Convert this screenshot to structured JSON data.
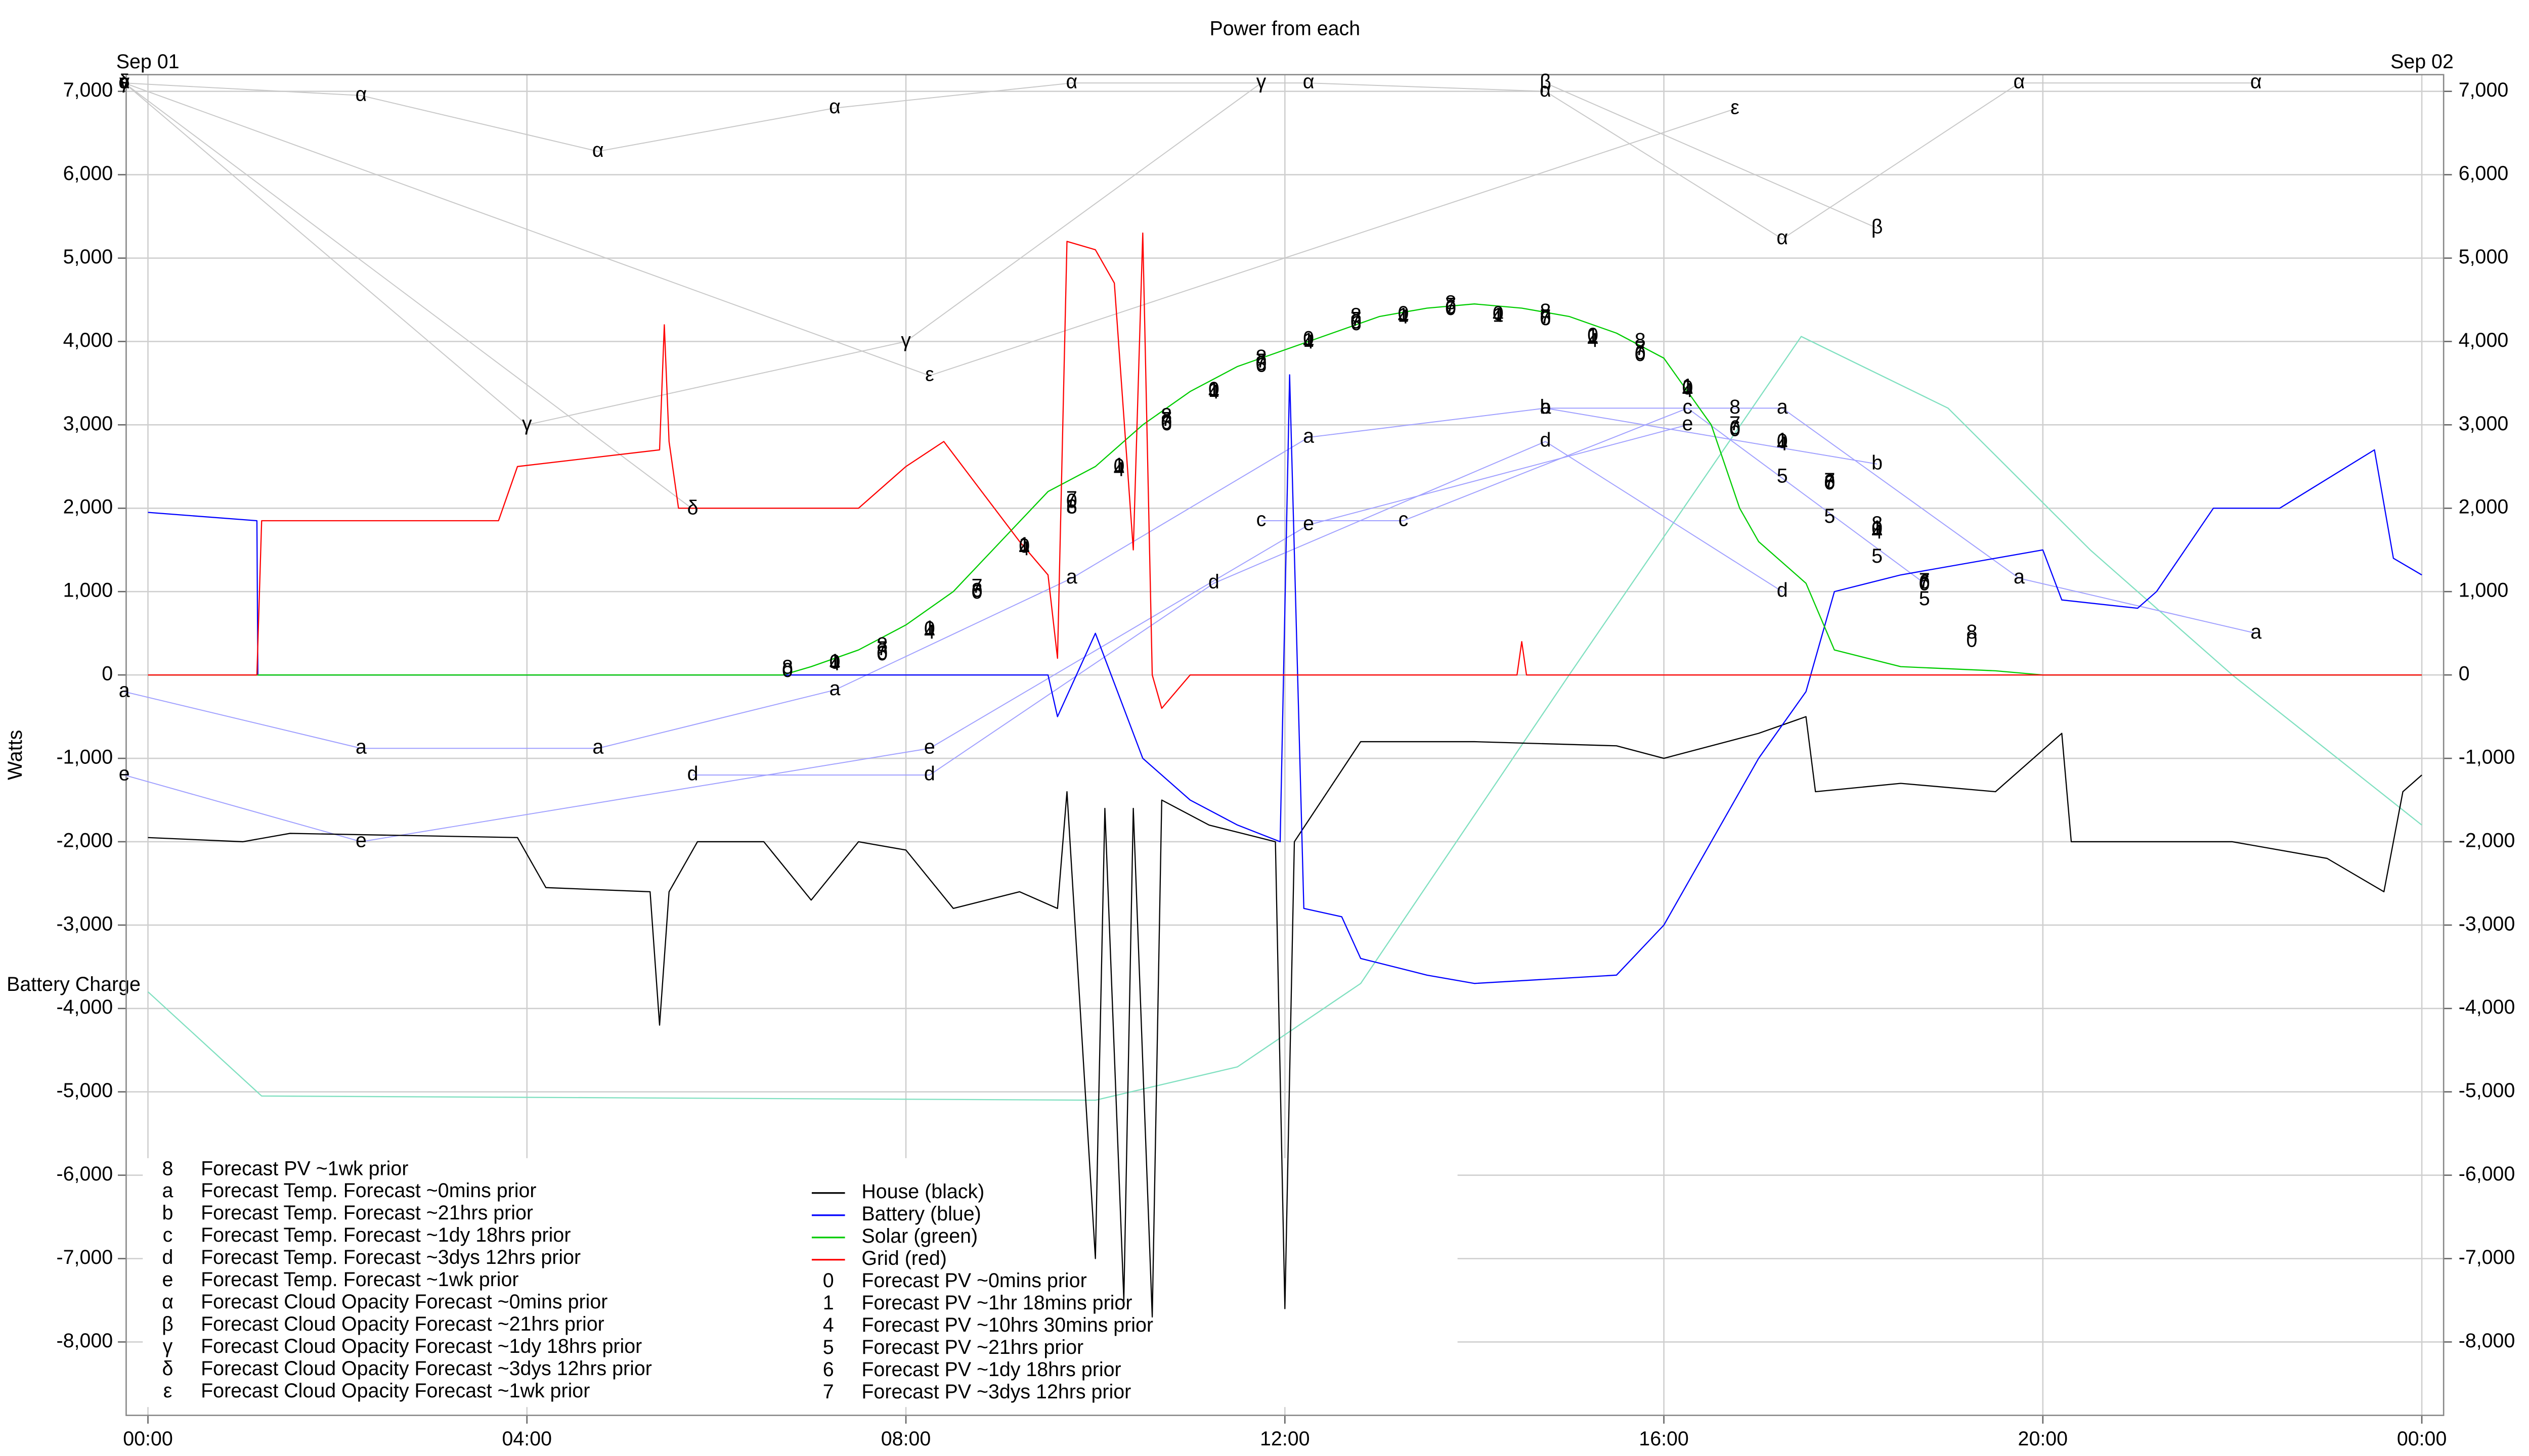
{
  "chart_data": {
    "type": "line",
    "title": "Power from each",
    "ylabel": "Watts",
    "date_start": "Sep 01",
    "date_end": "Sep 02",
    "grid": true,
    "xlim": [
      -0.23,
      24.23
    ],
    "ylim": [
      -8880,
      7200
    ],
    "xticks": [
      {
        "value": 0,
        "label": "00:00"
      },
      {
        "value": 4,
        "label": "04:00"
      },
      {
        "value": 8,
        "label": "08:00"
      },
      {
        "value": 12,
        "label": "12:00"
      },
      {
        "value": 16,
        "label": "16:00"
      },
      {
        "value": 20,
        "label": "20:00"
      },
      {
        "value": 24,
        "label": "00:00"
      }
    ],
    "yticks": [
      {
        "value": 7000,
        "label": "7,000"
      },
      {
        "value": 6000,
        "label": "6,000"
      },
      {
        "value": 5000,
        "label": "5,000"
      },
      {
        "value": 4000,
        "label": "4,000"
      },
      {
        "value": 3000,
        "label": "3,000"
      },
      {
        "value": 2000,
        "label": "2,000"
      },
      {
        "value": 1000,
        "label": "1,000"
      },
      0,
      {
        "value": -1000,
        "label": "-1,000"
      },
      {
        "value": -2000,
        "label": "-2,000"
      },
      {
        "value": -3000,
        "label": "-3,000"
      },
      {
        "value": -4000,
        "label": "-4,000"
      },
      {
        "value": -5000,
        "label": "-5,000"
      },
      {
        "value": -6000,
        "label": "-6,000"
      },
      {
        "value": -7000,
        "label": "-7,000"
      },
      {
        "value": -8000,
        "label": "-8,000"
      }
    ],
    "battery_charge": {
      "label": "Battery Charge",
      "color": "#80e0c0",
      "x": [
        0,
        1.2,
        10,
        11.5,
        12.8,
        15,
        17.45,
        19,
        20.5,
        22,
        24
      ],
      "values": [
        -3800,
        -5050,
        -5100,
        -4700,
        -3700,
        0,
        4060,
        3200,
        1500,
        0,
        -1800
      ]
    },
    "series": [
      {
        "name": "Forecast PV ~1wk prior",
        "symbol": "8",
        "mark": "symbol",
        "color": "#000000",
        "x": [
          6.75,
          7.75,
          8.75,
          9.75,
          10.75,
          11.75,
          12.75,
          13.75,
          14.75,
          15.75,
          16.75,
          17.75,
          18.25,
          19.25
        ],
        "values": [
          80,
          350,
          1000,
          2000,
          3100,
          3800,
          4300,
          4450,
          4350,
          4000,
          3200,
          2300,
          1800,
          500
        ]
      },
      {
        "name": "Forecast Temp. Forecast ~0mins prior",
        "symbol": "a",
        "mark": "line+symbol",
        "color": "#a0a0ff",
        "x": [
          -0.25,
          2.25,
          4.75,
          7.25,
          9.75,
          12.25,
          14.75,
          17.25,
          19.75,
          22.25
        ],
        "values": [
          -200,
          -880,
          -880,
          -180,
          1160,
          2850,
          3200,
          3200,
          1160,
          500
        ]
      },
      {
        "name": "Forecast Temp. Forecast ~21hrs prior",
        "symbol": "b",
        "mark": "line+symbol",
        "color": "#a0a0ff",
        "x": [
          14.75,
          18.25
        ],
        "values": [
          3200,
          2530
        ]
      },
      {
        "name": "Forecast Temp. Forecast ~1dy 18hrs prior",
        "symbol": "c",
        "mark": "line+symbol",
        "color": "#a0a0ff",
        "x": [
          11.75,
          13.25,
          16.25,
          18.75
        ],
        "values": [
          1850,
          1850,
          3200,
          1100
        ]
      },
      {
        "name": "Forecast Temp. Forecast ~3dys 12hrs prior",
        "symbol": "d",
        "mark": "line+symbol",
        "color": "#a0a0ff",
        "x": [
          5.75,
          8.25,
          11.25,
          14.75,
          17.25
        ],
        "values": [
          -1200,
          -1200,
          1100,
          2800,
          1000
        ]
      },
      {
        "name": "Forecast Temp. Forecast ~1wk prior",
        "symbol": "e",
        "mark": "line+symbol",
        "color": "#a0a0ff",
        "x": [
          -0.25,
          2.25,
          8.25,
          12.25,
          16.25
        ],
        "values": [
          -1200,
          -2000,
          -880,
          1800,
          3000
        ]
      },
      {
        "name": "Forecast Cloud Opacity Forecast ~0mins prior",
        "symbol": "α",
        "mark": "line+symbol",
        "color": "#c8c8c8",
        "x": [
          -0.25,
          2.25,
          4.75,
          7.25,
          9.75,
          12.25,
          14.75,
          17.25,
          19.75,
          22.25
        ],
        "values": [
          7100,
          6950,
          6280,
          6800,
          7100,
          7100,
          7000,
          5230,
          7100,
          7100
        ]
      },
      {
        "name": "Forecast Cloud Opacity Forecast ~21hrs prior",
        "symbol": "β",
        "mark": "line+symbol",
        "color": "#c8c8c8",
        "x": [
          14.75,
          18.25
        ],
        "values": [
          7100,
          5360
        ]
      },
      {
        "name": "Forecast Cloud Opacity Forecast ~1dy 18hrs prior",
        "symbol": "γ",
        "mark": "line+symbol",
        "color": "#c8c8c8",
        "x": [
          -0.25,
          4,
          8,
          11.75
        ],
        "values": [
          7100,
          3000,
          4000,
          7100
        ]
      },
      {
        "name": "Forecast Cloud Opacity Forecast ~3dys 12hrs prior",
        "symbol": "δ",
        "mark": "line+symbol",
        "color": "#c8c8c8",
        "x": [
          -0.25,
          5.75
        ],
        "values": [
          7100,
          1990
        ]
      },
      {
        "name": "Forecast Cloud Opacity Forecast ~1wk prior",
        "symbol": "ε",
        "mark": "line+symbol",
        "color": "#c8c8c8",
        "x": [
          -0.25,
          8.25,
          16.75
        ],
        "values": [
          7100,
          3590,
          6790
        ]
      },
      {
        "name": "House (black)",
        "mark": "line",
        "color": "#000000",
        "x": [
          0,
          1,
          1.5,
          3.9,
          4.2,
          5.3,
          5.4,
          5.5,
          5.8,
          6.5,
          7,
          7.5,
          8,
          8.5,
          9.2,
          9.6,
          9.7,
          10,
          10.1,
          10.3,
          10.4,
          10.6,
          10.7,
          11.2,
          11.9,
          12,
          12.1,
          12.8,
          14,
          15.5,
          16,
          17,
          17.5,
          17.6,
          18.5,
          19.5,
          20.2,
          20.3,
          21,
          22,
          23,
          23.6,
          23.8,
          24
        ],
        "values": [
          -1950,
          -2000,
          -1900,
          -1950,
          -2550,
          -2600,
          -4200,
          -2600,
          -2000,
          -2000,
          -2700,
          -2000,
          -2100,
          -2800,
          -2600,
          -2800,
          -1400,
          -7000,
          -1600,
          -7500,
          -1600,
          -7700,
          -1500,
          -1800,
          -2000,
          -7600,
          -2000,
          -800,
          -800,
          -850,
          -1000,
          -700,
          -500,
          -1400,
          -1300,
          -1400,
          -700,
          -2000,
          -2000,
          -2000,
          -2200,
          -2600,
          -1400,
          -1200
        ]
      },
      {
        "name": "Battery (blue)",
        "mark": "line",
        "color": "#0000ff",
        "x": [
          0,
          1.15,
          1.16,
          9.5,
          9.6,
          10,
          10.5,
          11,
          11.5,
          11.95,
          12.05,
          12.2,
          12.6,
          12.8,
          13.5,
          14,
          15.5,
          16,
          16.5,
          17,
          17.5,
          17.8,
          18.5,
          19.5,
          20,
          20.2,
          21,
          21.2,
          21.8,
          22.5,
          23.5,
          23.7,
          24
        ],
        "values": [
          1950,
          1850,
          0,
          0,
          -500,
          500,
          -1000,
          -1500,
          -1800,
          -2000,
          3600,
          -2800,
          -2900,
          -3400,
          -3600,
          -3700,
          -3600,
          -3000,
          -2000,
          -1000,
          -200,
          1000,
          1200,
          1400,
          1500,
          900,
          800,
          1000,
          2000,
          2000,
          2700,
          1400,
          1200
        ]
      },
      {
        "name": "Solar (green)",
        "mark": "line",
        "color": "#00cc00",
        "x": [
          0,
          6.7,
          7,
          7.5,
          8,
          8.5,
          9,
          9.5,
          10,
          10.5,
          11,
          11.5,
          12,
          12.5,
          13,
          13.5,
          14,
          14.5,
          15,
          15.5,
          16,
          16.5,
          16.8,
          17,
          17.5,
          17.8,
          18.5,
          19.5,
          20,
          24
        ],
        "values": [
          0,
          0,
          100,
          300,
          600,
          1000,
          1600,
          2200,
          2500,
          3000,
          3400,
          3700,
          3900,
          4100,
          4300,
          4400,
          4450,
          4400,
          4300,
          4100,
          3800,
          3000,
          2000,
          1600,
          1100,
          300,
          100,
          50,
          0,
          0
        ]
      },
      {
        "name": "Grid (red)",
        "mark": "line",
        "color": "#ff0000",
        "x": [
          0,
          1.15,
          1.2,
          3.7,
          3.9,
          5.4,
          5.45,
          5.5,
          5.6,
          7.5,
          8,
          8.4,
          8.8,
          9.2,
          9.5,
          9.6,
          9.7,
          10,
          10.2,
          10.4,
          10.5,
          10.6,
          10.7,
          11,
          14.45,
          14.5,
          14.55,
          24
        ],
        "values": [
          0,
          0,
          1850,
          1850,
          2500,
          2700,
          4200,
          2800,
          2000,
          2000,
          2500,
          2800,
          2200,
          1600,
          1200,
          200,
          5200,
          5100,
          4700,
          1500,
          5300,
          0,
          -400,
          0,
          0,
          400,
          0,
          0
        ]
      },
      {
        "name": "Forecast PV ~0mins prior",
        "symbol": "0",
        "mark": "symbol",
        "color": "#000000",
        "x": [
          6.75,
          7.25,
          7.75,
          8.25,
          8.75,
          9.25,
          9.75,
          10.25,
          10.75,
          11.25,
          11.75,
          12.25,
          12.75,
          13.25,
          13.75,
          14.25,
          14.75,
          15.25,
          15.75,
          16.25,
          16.75,
          17.25,
          17.75,
          18.25,
          18.75,
          19.25
        ],
        "values": [
          40,
          140,
          240,
          540,
          980,
          1530,
          2070,
          2490,
          3010,
          3410,
          3720,
          4020,
          4220,
          4320,
          4380,
          4320,
          4260,
          4060,
          3830,
          3430,
          2930,
          2790,
          2290,
          1740,
          1080,
          400
        ]
      },
      {
        "name": "Forecast PV ~1hr 18mins prior",
        "symbol": "1",
        "mark": "symbol",
        "color": "#000000",
        "x": [
          7.25,
          8.25,
          9.25,
          10.25,
          11.25,
          12.25,
          13.25,
          14.25,
          15.25,
          16.25,
          17.25,
          18.25
        ],
        "values": [
          150,
          550,
          1550,
          2500,
          3400,
          4000,
          4300,
          4300,
          4050,
          3450,
          2800,
          1750
        ]
      },
      {
        "name": "Forecast PV ~10hrs 30mins prior",
        "symbol": "4",
        "mark": "symbol",
        "color": "#000000",
        "x": [
          7.25,
          8.25,
          9.25,
          10.25,
          11.25,
          12.25,
          13.25,
          14.25,
          15.25,
          16.25,
          17.25,
          18.25
        ],
        "values": [
          120,
          500,
          1500,
          2450,
          3380,
          3980,
          4280,
          4300,
          4000,
          3400,
          2760,
          1700
        ]
      },
      {
        "name": "Forecast PV ~21hrs prior",
        "symbol": "5",
        "mark": "symbol",
        "color": "#000000",
        "x": [
          17.25,
          17.75,
          18.25,
          18.75
        ],
        "values": [
          2370,
          1890,
          1410,
          900
        ]
      },
      {
        "name": "Forecast PV ~1dy 18hrs prior",
        "symbol": "6",
        "mark": "symbol",
        "color": "#000000",
        "x": [
          7.75,
          8.75,
          9.75,
          10.75,
          11.75,
          12.75,
          13.75,
          14.75,
          15.75,
          16.75,
          17.75,
          18.75
        ],
        "values": [
          250,
          1000,
          2000,
          3000,
          3700,
          4200,
          4400,
          4260,
          3850,
          2950,
          2300,
          1100
        ]
      },
      {
        "name": "Forecast PV ~3dys 12hrs prior",
        "symbol": "7",
        "mark": "symbol",
        "color": "#000000",
        "x": [
          7.75,
          8.75,
          9.75,
          10.75,
          11.75,
          12.75,
          13.75,
          14.75,
          15.75,
          16.75,
          17.75,
          18.75
        ],
        "values": [
          300,
          1050,
          2100,
          3050,
          3750,
          4250,
          4420,
          4280,
          3900,
          3000,
          2320,
          1120
        ]
      }
    ]
  }
}
